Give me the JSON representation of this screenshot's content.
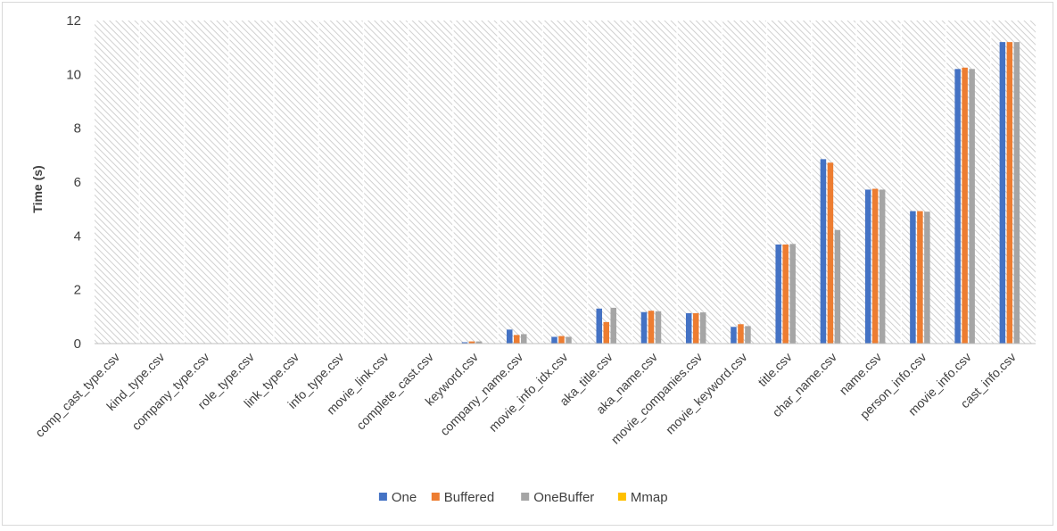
{
  "chart_data": {
    "type": "bar",
    "title": "",
    "xlabel": "",
    "ylabel": "Time (s)",
    "ylim": [
      0,
      12
    ],
    "yticks": [
      0,
      2,
      4,
      6,
      8,
      10,
      12
    ],
    "grid": false,
    "legend_position": "bottom",
    "categories": [
      "comp_cast_type.csv",
      "kind_type.csv",
      "company_type.csv",
      "role_type.csv",
      "link_type.csv",
      "info_type.csv",
      "movie_link.csv",
      "complete_cast.csv",
      "keyword.csv",
      "company_name.csv",
      "movie_info_idx.csv",
      "aka_title.csv",
      "aka_name.csv",
      "movie_companies.csv",
      "movie_keyword.csv",
      "title.csv",
      "char_name.csv",
      "name.csv",
      "person_info.csv",
      "movie_info.csv",
      "cast_info.csv"
    ],
    "series": [
      {
        "name": "One",
        "color": "#4472c4",
        "values": [
          0.01,
          0.01,
          0.01,
          0.01,
          0.01,
          0.01,
          0.01,
          0.01,
          0.05,
          0.52,
          0.25,
          1.3,
          1.17,
          1.13,
          0.62,
          3.68,
          6.85,
          5.72,
          4.92,
          10.2,
          11.2
        ]
      },
      {
        "name": "Buffered",
        "color": "#ed7d31",
        "values": [
          0.01,
          0.01,
          0.01,
          0.01,
          0.01,
          0.01,
          0.01,
          0.01,
          0.08,
          0.32,
          0.28,
          0.8,
          1.22,
          1.13,
          0.72,
          3.68,
          6.72,
          5.75,
          4.92,
          10.25,
          11.2
        ]
      },
      {
        "name": "OneBuffer",
        "color": "#a5a5a5",
        "values": [
          0.01,
          0.01,
          0.01,
          0.01,
          0.01,
          0.01,
          0.01,
          0.01,
          0.08,
          0.35,
          0.25,
          1.33,
          1.2,
          1.16,
          0.65,
          3.7,
          4.22,
          5.72,
          4.9,
          10.2,
          11.2
        ]
      },
      {
        "name": "Mmap",
        "color": "#ffc000",
        "values": [
          0,
          0,
          0,
          0,
          0,
          0,
          0,
          0,
          0,
          0,
          0,
          0,
          0,
          0,
          0,
          0,
          0,
          0,
          0,
          0,
          0
        ]
      }
    ]
  }
}
